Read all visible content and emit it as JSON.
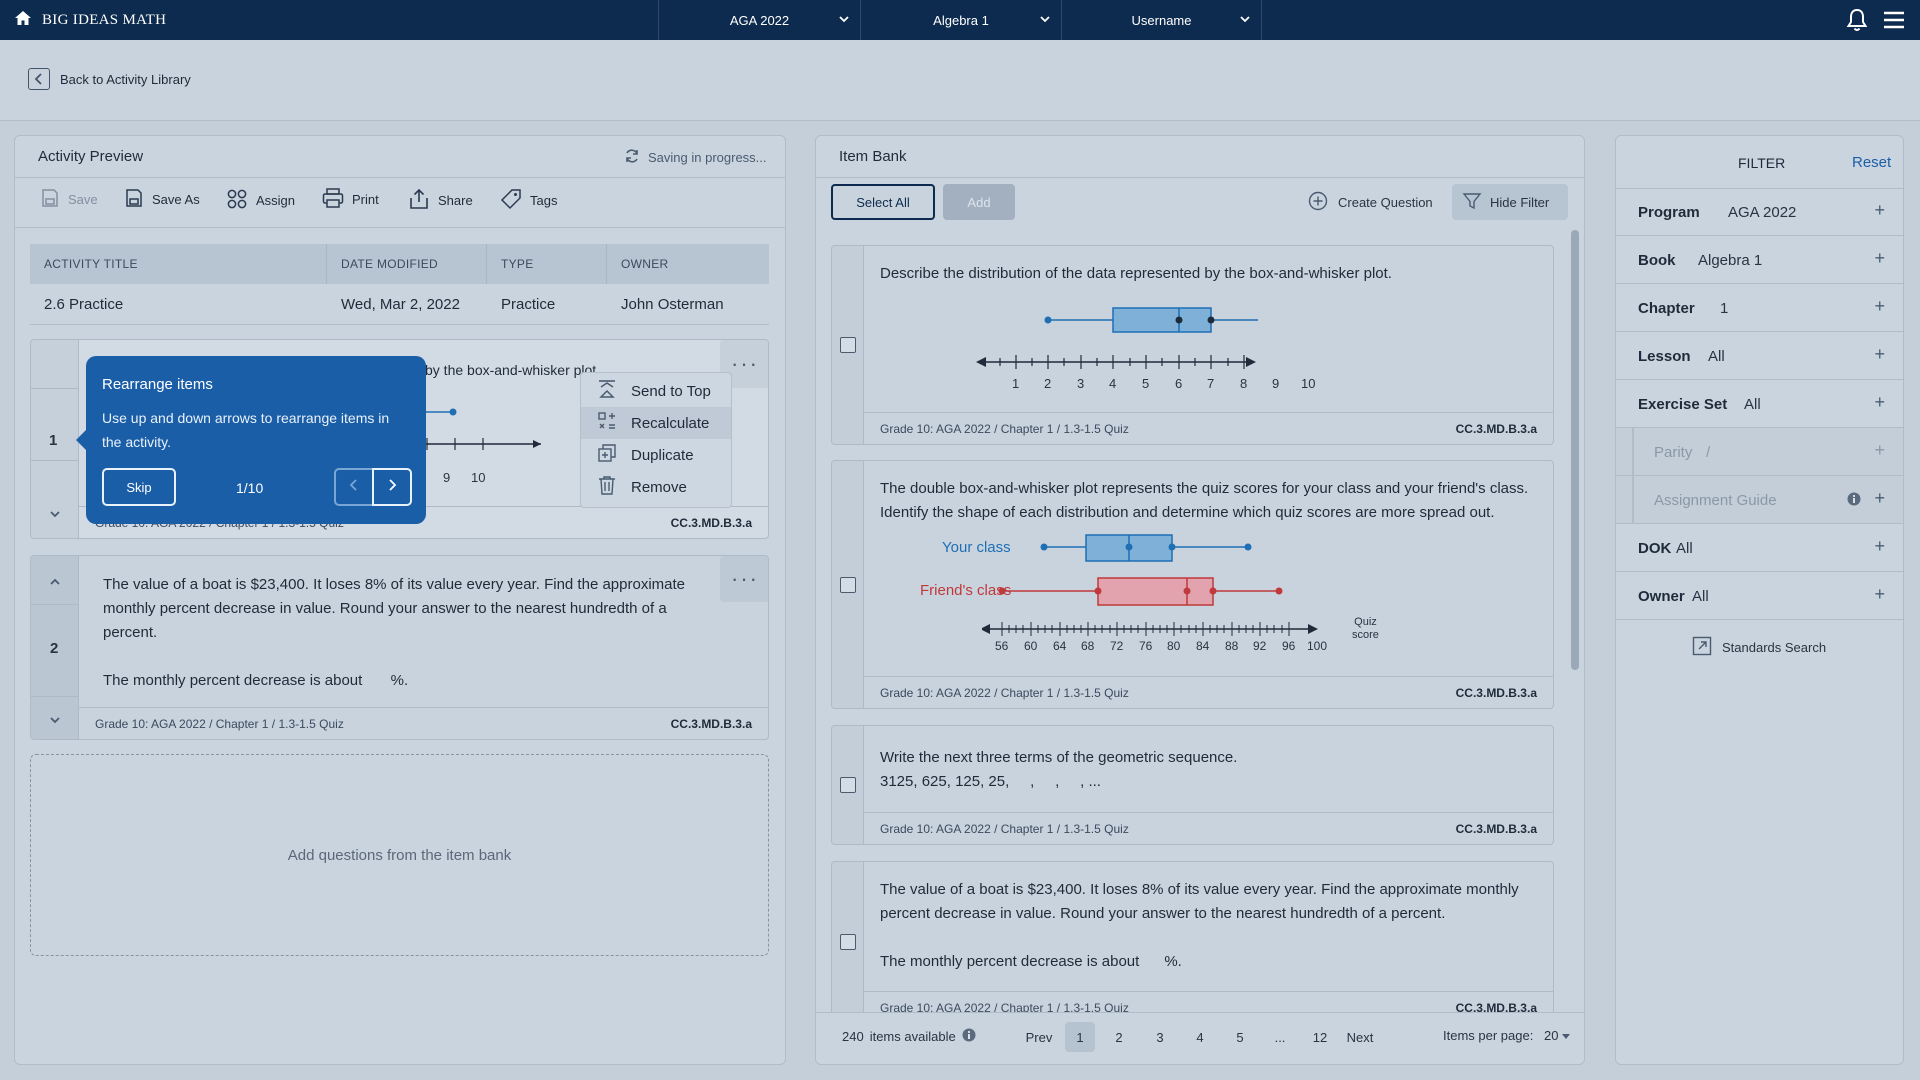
{
  "topbar": {
    "brand": "BIG IDEAS MATH",
    "program_select": "AGA 2022",
    "course_select": "Algebra 1",
    "user_select": "Username"
  },
  "nav": {
    "back_label": "Back to Activity Library"
  },
  "preview": {
    "title": "Activity Preview",
    "saving_status": "Saving in progress...",
    "toolbar": {
      "save": "Save",
      "save_as": "Save As",
      "assign": "Assign",
      "print": "Print",
      "share": "Share",
      "tags": "Tags"
    },
    "table": {
      "headers": [
        "ACTIVITY TITLE",
        "DATE MODIFIED",
        "TYPE",
        "OWNER"
      ],
      "row": [
        "2.6 Practice",
        "Wed, Mar 2, 2022",
        "Practice",
        "John Osterman"
      ]
    },
    "items": [
      {
        "number": "1",
        "text_fragment": "by the box-and-whisker plot.",
        "axis_labels": [
          "9",
          "10"
        ],
        "footer_left": "Grade 10: AGA 2022 / Chapter 1 / 1.3-1.5 Quiz",
        "footer_right": "CC.3.MD.B.3.a"
      },
      {
        "number": "2",
        "text": "The value of a boat is $23,400. It loses 8% of its value every year. Find the approximate monthly percent decrease in value. Round your answer to the nearest hundredth of a percent.",
        "answer_prefix": "The monthly percent decrease is about",
        "answer_suffix": "%.",
        "footer_left": "Grade 10: AGA 2022 / Chapter 1 / 1.3-1.5 Quiz",
        "footer_right": "CC.3.MD.B.3.a"
      }
    ],
    "dropzone_label": "Add questions from the item bank",
    "context_menu": [
      "Send to Top",
      "Recalculate",
      "Duplicate",
      "Remove"
    ],
    "context_menu_highlighted": "Recalculate"
  },
  "tooltip": {
    "title": "Rearrange items",
    "body": "Use up and down arrows to rearrange items in the activity.",
    "skip": "Skip",
    "step": "1/10"
  },
  "itembank": {
    "title": "Item Bank",
    "select_all": "Select All",
    "add": "Add",
    "create_question": "Create Question",
    "hide_filter": "Hide Filter",
    "cards": [
      {
        "text": "Describe the distribution of the data represented by the box-and-whisker plot.",
        "axis_ticks": [
          "1",
          "2",
          "3",
          "4",
          "5",
          "6",
          "7",
          "8",
          "9",
          "10"
        ],
        "footer_left": "Grade 10: AGA 2022 / Chapter 1 / 1.3-1.5 Quiz",
        "footer_right": "CC.3.MD.B.3.a"
      },
      {
        "text": "The double box-and-whisker plot represents the quiz scores for your class and your friend's class. Identify the shape of each distribution and determine which quiz scores are more spread out.",
        "series_labels": [
          "Your class",
          "Friend's class"
        ],
        "axis_ticks": [
          "56",
          "60",
          "64",
          "68",
          "72",
          "76",
          "80",
          "84",
          "88",
          "92",
          "96",
          "100"
        ],
        "axis_title_1": "Quiz",
        "axis_title_2": "score",
        "footer_left": "Grade 10: AGA 2022 / Chapter 1 / 1.3-1.5 Quiz",
        "footer_right": "CC.3.MD.B.3.a"
      },
      {
        "text": "Write the next three terms of the geometric sequence.",
        "sequence": "3125, 625, 125, 25,     ,     ,     , ...",
        "footer_left": "Grade 10: AGA 2022 / Chapter 1 / 1.3-1.5 Quiz",
        "footer_right": "CC.3.MD.B.3.a"
      },
      {
        "text": "The value of a boat is $23,400. It loses 8% of its value every year. Find the approximate monthly percent decrease in value. Round your answer to the nearest hundredth of a percent.",
        "answer": "The monthly percent decrease is about      %.",
        "footer_left": "Grade 10: AGA 2022 / Chapter 1 / 1.3-1.5 Quiz",
        "footer_right": "CC.3.MD.B.3.a"
      }
    ],
    "pagination": {
      "count": "240",
      "count_label": "items available",
      "prev": "Prev",
      "pages": [
        "1",
        "2",
        "3",
        "4",
        "5",
        "...",
        "12"
      ],
      "current": "1",
      "next": "Next",
      "per_page_label": "Items per page:",
      "per_page": "20"
    }
  },
  "filter": {
    "title": "FILTER",
    "reset": "Reset",
    "rows": [
      {
        "key": "Program",
        "value": "AGA 2022"
      },
      {
        "key": "Book",
        "value": "Algebra 1"
      },
      {
        "key": "Chapter",
        "value": "1"
      },
      {
        "key": "Lesson",
        "value": "All"
      },
      {
        "key": "Exercise Set",
        "value": "All"
      },
      {
        "key": "Parity",
        "value": "/"
      },
      {
        "key": "Assignment Guide",
        "value": ""
      },
      {
        "key": "DOK",
        "value": "All"
      },
      {
        "key": "Owner",
        "value": "All"
      }
    ],
    "standards_search": "Standards Search"
  },
  "colors": {
    "navy": "#0d2b4e",
    "accent_blue": "#1a5ea8",
    "your_class": "#1f6fb5",
    "friends_class": "#c0393b"
  }
}
